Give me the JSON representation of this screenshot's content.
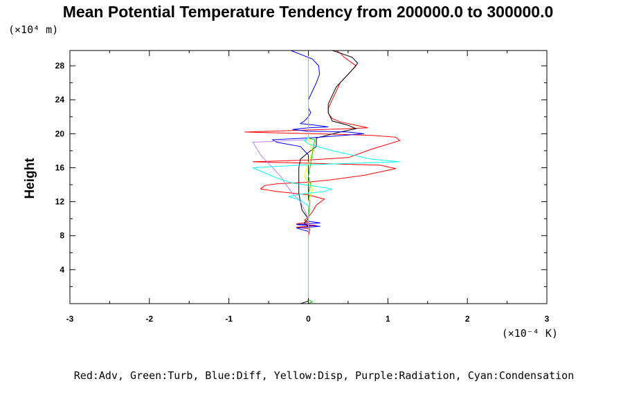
{
  "chart_data": {
    "type": "line",
    "title": "Mean Potential Temperature Tendency from 200000.0 to 300000.0",
    "ylabel": "Height",
    "y_multiplier": "(×10⁴ m)",
    "x_multiplier": "(×10⁻⁴ K)",
    "legend_text": "Red:Adv, Green:Turb, Blue:Diff, Yellow:Disp, Purple:Radiation, Cyan:Condensation",
    "xlim": [
      -3,
      3
    ],
    "ylim": [
      0,
      29.8
    ],
    "x_ticks": [
      "-3",
      "-2",
      "-1",
      "0",
      "1",
      "2",
      "3"
    ],
    "y_ticks": [
      "4",
      "8",
      "12",
      "16",
      "20",
      "24",
      "28"
    ],
    "grid": false,
    "series": [
      {
        "color": "#ff0000",
        "x": [
          0.0,
          0.0,
          0.0,
          0.0,
          0.02,
          -0.15,
          0.1,
          -0.15,
          0.0,
          -0.05,
          0.0,
          0.05,
          0.1,
          0.2,
          0.0,
          -0.2,
          -0.4,
          -0.6,
          -0.55,
          -0.4,
          0.0,
          0.3,
          0.7,
          1.1,
          0.9,
          0.1,
          -0.3,
          -0.7,
          0.0,
          0.5,
          0.8,
          1.15,
          1.1,
          0.8,
          0.5,
          0.1,
          -0.4,
          -0.8,
          -0.3,
          0.2,
          0.5,
          0.75,
          0.6,
          0.4,
          0.3,
          0.25,
          0.25,
          0.3,
          0.35,
          0.4,
          0.5,
          0.6,
          0.45,
          0.4,
          0.35
        ],
        "y": [
          0.0,
          2.0,
          5.0,
          8.0,
          8.8,
          9.0,
          9.2,
          9.4,
          9.6,
          9.8,
          10.2,
          10.8,
          11.6,
          12.3,
          12.8,
          13.0,
          13.2,
          13.5,
          13.9,
          14.1,
          14.3,
          14.6,
          15.1,
          15.9,
          16.3,
          16.5,
          16.6,
          16.7,
          16.9,
          17.2,
          18.2,
          19.2,
          19.6,
          19.8,
          19.9,
          20.0,
          20.1,
          20.2,
          20.35,
          20.5,
          20.6,
          20.7,
          21.0,
          21.4,
          21.8,
          22.4,
          23.0,
          24.0,
          25.0,
          26.0,
          27.0,
          28.0,
          29.0,
          29.5,
          29.8
        ]
      },
      {
        "color": "#000000",
        "x": [
          -0.1,
          0.0,
          0.0,
          0.0,
          0.0,
          0.0,
          -0.05,
          0.0,
          -0.08,
          -0.1,
          -0.12,
          -0.12,
          -0.12,
          -0.12,
          -0.1,
          0.0,
          0.1,
          0.1,
          0.4,
          0.6,
          0.5,
          0.3,
          0.25,
          0.25,
          0.3,
          0.35,
          0.45,
          0.55,
          0.62,
          0.55,
          0.4,
          0.3
        ],
        "y": [
          0.0,
          0.3,
          2.0,
          5.0,
          8.0,
          9.0,
          9.5,
          10.0,
          11.0,
          12.0,
          13.0,
          14.0,
          15.0,
          16.0,
          17.0,
          17.8,
          18.5,
          19.5,
          20.2,
          20.6,
          21.0,
          21.5,
          22.5,
          23.5,
          24.5,
          25.5,
          26.5,
          27.5,
          28.3,
          29.0,
          29.5,
          29.8
        ]
      },
      {
        "color": "#0000ff",
        "x": [
          0.0,
          0.0,
          0.0,
          0.0,
          -0.15,
          0.15,
          -0.15,
          0.15,
          0.0,
          0.0,
          0.0,
          0.0,
          0.0,
          0.0,
          -0.1,
          -0.4,
          -0.45,
          0.0,
          0.3,
          0.7,
          0.5,
          0.0,
          -0.2,
          0.0,
          0.25,
          0.1,
          -0.1,
          -0.05,
          0.0,
          0.03,
          0.0,
          0.0,
          0.05,
          0.1,
          0.14,
          0.13,
          0.05,
          -0.22
        ],
        "y": [
          0.0,
          2.0,
          5.0,
          8.5,
          8.9,
          9.1,
          9.3,
          9.5,
          9.7,
          10.0,
          12.0,
          14.0,
          16.0,
          17.5,
          18.5,
          19.0,
          19.3,
          19.5,
          19.7,
          20.0,
          20.2,
          20.3,
          20.5,
          20.7,
          20.8,
          21.0,
          21.2,
          21.5,
          22.0,
          22.5,
          23.0,
          24.0,
          25.0,
          26.0,
          27.0,
          28.0,
          28.8,
          29.8
        ]
      },
      {
        "color": "#00cc00",
        "x": [
          0.0,
          0.05,
          0.0,
          0.0,
          0.0,
          0.0,
          0.0,
          0.02,
          0.0,
          0.03,
          0.0,
          0.02,
          0.08,
          0.0,
          0.0
        ],
        "y": [
          0.0,
          0.2,
          0.5,
          2.0,
          5.0,
          8.0,
          10.0,
          12.0,
          13.0,
          14.0,
          15.0,
          16.0,
          19.3,
          19.5,
          20.0
        ]
      },
      {
        "color": "#ffff00",
        "x": [
          0.0,
          0.0,
          0.0,
          0.0,
          0.05,
          -0.05,
          0.0,
          0.05,
          0.0,
          0.0
        ],
        "y": [
          0.0,
          5.0,
          10.0,
          12.0,
          13.5,
          15.0,
          16.5,
          18.0,
          19.5,
          20.0
        ]
      },
      {
        "color": "#c080ff",
        "x": [
          0.0,
          0.0,
          0.0,
          0.0,
          -0.05,
          -0.1,
          -0.2,
          -0.28,
          -0.35,
          -0.45,
          -0.6,
          -0.7,
          0.0
        ],
        "y": [
          0.0,
          5.0,
          8.0,
          10.0,
          11.0,
          12.0,
          13.0,
          14.0,
          15.0,
          16.0,
          17.5,
          19.0,
          19.3
        ]
      },
      {
        "color": "#00ffff",
        "x": [
          0.0,
          0.0,
          0.0,
          0.0,
          0.0,
          0.0,
          -0.1,
          -0.25,
          -0.1,
          0.2,
          0.3,
          0.1,
          -0.2,
          -0.4,
          -0.7,
          -0.1,
          0.5,
          1.15,
          0.8,
          0.3,
          0.0,
          -0.05,
          0.0,
          0.0,
          0.0,
          0.0
        ],
        "y": [
          0.0,
          2.0,
          5.0,
          8.0,
          10.0,
          11.5,
          12.2,
          12.6,
          12.9,
          13.2,
          13.5,
          13.8,
          14.2,
          14.8,
          16.0,
          16.3,
          16.5,
          16.7,
          17.0,
          18.0,
          18.8,
          19.2,
          19.6,
          22.0,
          26.0,
          29.8
        ]
      }
    ]
  }
}
